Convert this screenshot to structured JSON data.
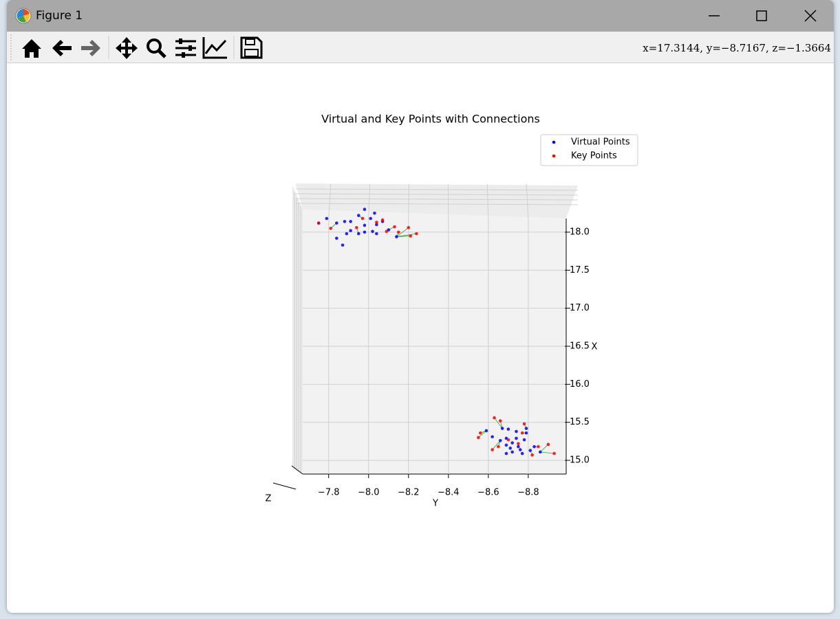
{
  "window": {
    "title": "Figure 1",
    "status": "x=17.3144, y=−8.7167, z=−1.3664"
  },
  "chart_data": {
    "type": "scatter",
    "title": "Virtual and Key Points with Connections",
    "xlabel": "Y",
    "ylabel": "X",
    "zlabel": "Z",
    "xlim": [
      -7.67,
      -8.99
    ],
    "ylim": [
      14.82,
      18.18
    ],
    "xticks": [
      {
        "value": -7.8,
        "label": "−7.8"
      },
      {
        "value": -8.0,
        "label": "−8.0"
      },
      {
        "value": -8.2,
        "label": "−8.2"
      },
      {
        "value": -8.4,
        "label": "−8.4"
      },
      {
        "value": -8.6,
        "label": "−8.6"
      },
      {
        "value": -8.8,
        "label": "−8.8"
      }
    ],
    "yticks": [
      {
        "value": 15,
        "label": "15.0"
      },
      15.5,
      {
        "value": 16,
        "label": "16.0"
      },
      16.5,
      {
        "value": 17,
        "label": "17.0"
      },
      17.5,
      {
        "value": 18,
        "label": "18.0"
      }
    ],
    "grid": true,
    "legend": "upper right",
    "series": [
      {
        "name": "Virtual Points",
        "color": "#0000ff",
        "x": [
          -7.75,
          -7.79,
          -7.84,
          -7.88,
          -7.91,
          -7.95,
          -7.98,
          -8.01,
          -8.03,
          -8.04,
          -8.02,
          -7.98,
          -7.95,
          -7.89,
          -7.84,
          -7.87,
          -8.07,
          -8.1,
          -8.14,
          -7.98,
          -8.04,
          -7.91,
          -8.59,
          -8.62,
          -8.67,
          -8.7,
          -8.74,
          -8.79,
          -8.66,
          -8.69,
          -8.72,
          -8.75,
          -8.76,
          -8.72,
          -8.69,
          -8.77,
          -8.81,
          -8.83,
          -8.86,
          -8.74,
          -8.69,
          -8.78,
          -8.71,
          -8.79
        ],
        "values": [
          18.12,
          18.18,
          18.12,
          18.14,
          18.14,
          18.22,
          18.3,
          18.18,
          18.25,
          18.1,
          18.01,
          18.0,
          17.98,
          17.98,
          17.92,
          17.83,
          18.14,
          18.03,
          17.94,
          18.09,
          17.98,
          18.02,
          15.39,
          15.31,
          15.42,
          15.41,
          15.38,
          15.42,
          15.26,
          15.29,
          15.23,
          15.18,
          15.14,
          15.11,
          15.09,
          15.09,
          15.13,
          15.18,
          15.11,
          15.29,
          15.2,
          15.27,
          15.16,
          15.36
        ]
      },
      {
        "name": "Key Points",
        "color": "#ff0000",
        "x": [
          -7.75,
          -7.81,
          -7.94,
          -8.04,
          -8.09,
          -8.13,
          -8.15,
          -8.2,
          -8.24,
          -8.21,
          -8.07,
          -7.97,
          -8.55,
          -8.56,
          -8.63,
          -8.66,
          -8.62,
          -8.65,
          -8.7,
          -8.77,
          -8.78,
          -8.85,
          -8.9,
          -8.93,
          -8.82,
          -8.75
        ],
        "values": [
          18.12,
          18.05,
          18.06,
          18.13,
          18.01,
          18.07,
          18.0,
          18.06,
          17.98,
          17.95,
          18.16,
          18.18,
          15.3,
          15.36,
          15.56,
          15.52,
          15.14,
          15.18,
          15.27,
          15.36,
          15.48,
          15.18,
          15.21,
          15.09,
          15.07,
          15.22
        ]
      }
    ]
  }
}
